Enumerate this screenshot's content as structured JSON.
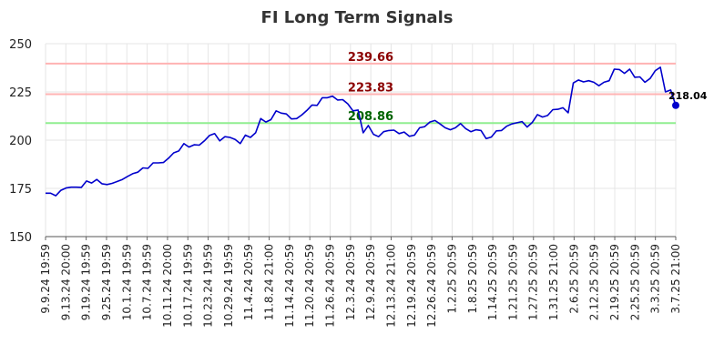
{
  "chart_data": {
    "type": "line",
    "title": "FI Long Term Signals",
    "xlabel": "",
    "ylabel": "",
    "ylim": [
      150,
      250
    ],
    "yticks": [
      150,
      175,
      200,
      225,
      250
    ],
    "grid": true,
    "x_tick_labels": [
      "9.9.24 19:59",
      "9.13.24 20:00",
      "9.19.24 19:59",
      "9.25.24 19:59",
      "10.1.24 19:59",
      "10.7.24 19:59",
      "10.11.24 20:00",
      "10.17.24 19:59",
      "10.23.24 19:59",
      "10.29.24 19:59",
      "11.4.24 20:59",
      "11.8.24 21:00",
      "11.14.24 20:59",
      "11.20.24 20:59",
      "11.26.24 20:59",
      "12.3.24 20:59",
      "12.9.24 20:59",
      "12.13.24 21:00",
      "12.19.24 20:59",
      "12.26.24 20:59",
      "1.2.25 20:59",
      "1.8.25 20:59",
      "1.14.25 20:59",
      "1.21.25 20:59",
      "1.27.25 20:59",
      "1.31.25 21:00",
      "2.6.25 20:59",
      "2.12.25 20:59",
      "2.19.25 20:59",
      "2.25.25 20:59",
      "3.3.25 20:59",
      "3.7.25 21:00"
    ],
    "levels": [
      {
        "value": 239.66,
        "label": "239.66",
        "line_color": "#ffb3b3",
        "label_color": "#8b0000"
      },
      {
        "value": 223.83,
        "label": "223.83",
        "line_color": "#ffb3b3",
        "label_color": "#8b0000"
      },
      {
        "value": 208.86,
        "label": "208.86",
        "line_color": "#90ee90",
        "label_color": "#006400"
      }
    ],
    "series": [
      {
        "color": "#0000cc",
        "values": [
          172.5,
          172.5,
          171.2,
          174.0,
          175.2,
          175.6,
          175.6,
          175.5,
          178.8,
          177.8,
          179.6,
          177.4,
          177.0,
          177.6,
          178.6,
          179.6,
          181.2,
          182.6,
          183.4,
          185.6,
          185.4,
          188.2,
          188.2,
          188.4,
          190.6,
          193.4,
          194.4,
          198.2,
          196.4,
          197.6,
          197.4,
          199.6,
          202.4,
          203.4,
          199.6,
          201.8,
          201.4,
          200.4,
          198.2,
          202.6,
          201.4,
          203.8,
          211.2,
          209.4,
          210.6,
          215.2,
          214.0,
          213.6,
          211.0,
          211.2,
          213.0,
          215.4,
          218.2,
          218.0,
          222.0,
          222.0,
          222.8,
          220.8,
          221.0,
          218.8,
          215.2,
          215.6,
          203.8,
          207.6,
          203.0,
          201.8,
          204.4,
          205.0,
          205.2,
          203.4,
          204.2,
          202.0,
          202.6,
          206.4,
          207.0,
          209.4,
          210.2,
          208.4,
          206.4,
          205.4,
          206.4,
          208.6,
          206.0,
          204.4,
          205.4,
          205.0,
          200.8,
          201.6,
          204.8,
          205.0,
          207.2,
          208.4,
          209.0,
          209.6,
          206.8,
          209.2,
          213.2,
          212.0,
          212.8,
          215.8,
          216.0,
          216.8,
          214.2,
          229.6,
          231.2,
          230.2,
          230.8,
          230.0,
          228.2,
          230.0,
          230.8,
          236.8,
          236.6,
          234.6,
          236.8,
          232.6,
          232.8,
          230.0,
          232.0,
          236.0,
          237.8,
          225.0,
          226.0,
          218.04
        ]
      }
    ],
    "last_value": 218.04,
    "last_label": "218.04"
  }
}
